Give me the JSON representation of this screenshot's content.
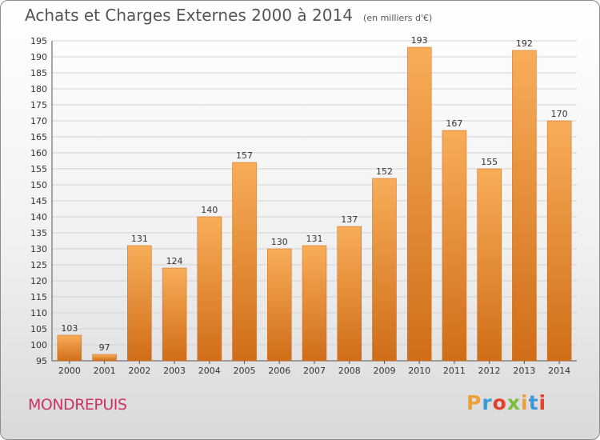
{
  "title": "Achats et Charges Externes 2000 à 2014",
  "subtitle": "(en milliers d'€)",
  "commune": "MONDREPUIS",
  "brand": {
    "letters": [
      "P",
      "r",
      "o",
      "x",
      "i",
      "t",
      "i"
    ],
    "colors": [
      "#f0a030",
      "#3a9ad9",
      "#e83e2c",
      "#7abf3a",
      "#f0a030",
      "#3a9ad9",
      "#e83e2c"
    ]
  },
  "colors": {
    "bar_light": "#f6a54c",
    "bar_dark": "#d7711a",
    "commune": "#cc3366"
  },
  "chart_data": {
    "type": "bar",
    "title": "Achats et Charges Externes 2000 à 2014",
    "subtitle": "(en milliers d'€)",
    "xlabel": "",
    "ylabel": "",
    "ylim": [
      95,
      195
    ],
    "ytick_step": 5,
    "grid": true,
    "categories": [
      "2000",
      "2001",
      "2002",
      "2003",
      "2004",
      "2005",
      "2006",
      "2007",
      "2008",
      "2009",
      "2010",
      "2011",
      "2012",
      "2013",
      "2014"
    ],
    "values": [
      103,
      97,
      131,
      124,
      140,
      157,
      130,
      131,
      137,
      152,
      193,
      167,
      155,
      192,
      170
    ]
  }
}
